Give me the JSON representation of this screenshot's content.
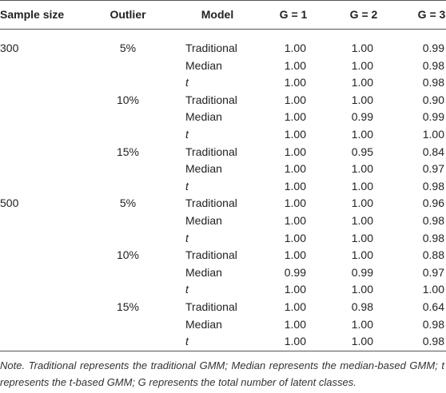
{
  "table": {
    "header": [
      "Sample size",
      "Outlier",
      "Model",
      "G = 1",
      "G = 2",
      "G = 3"
    ],
    "rows": [
      [
        "300",
        "5%",
        "Traditional",
        "1.00",
        "1.00",
        "0.99"
      ],
      [
        null,
        null,
        "Median",
        "1.00",
        "1.00",
        "0.98"
      ],
      [
        null,
        null,
        "t",
        "1.00",
        "1.00",
        "0.98"
      ],
      [
        null,
        "10%",
        "Traditional",
        "1.00",
        "1.00",
        "0.90"
      ],
      [
        null,
        null,
        "Median",
        "1.00",
        "0.99",
        "0.99"
      ],
      [
        null,
        null,
        "t",
        "1.00",
        "1.00",
        "1.00"
      ],
      [
        null,
        "15%",
        "Traditional",
        "1.00",
        "0.95",
        "0.84"
      ],
      [
        null,
        null,
        "Median",
        "1.00",
        "1.00",
        "0.97"
      ],
      [
        null,
        null,
        "t",
        "1.00",
        "1.00",
        "0.98"
      ],
      [
        "500",
        "5%",
        "Traditional",
        "1.00",
        "1.00",
        "0.96"
      ],
      [
        null,
        null,
        "Median",
        "1.00",
        "1.00",
        "0.98"
      ],
      [
        null,
        null,
        "t",
        "1.00",
        "1.00",
        "0.98"
      ],
      [
        null,
        "10%",
        "Traditional",
        "1.00",
        "1.00",
        "0.88"
      ],
      [
        null,
        null,
        "Median",
        "0.99",
        "0.99",
        "0.97"
      ],
      [
        null,
        null,
        "t",
        "1.00",
        "1.00",
        "1.00"
      ],
      [
        null,
        "15%",
        "Traditional",
        "1.00",
        "0.98",
        "0.64"
      ],
      [
        null,
        null,
        "Median",
        "1.00",
        "1.00",
        "0.98"
      ],
      [
        null,
        null,
        "t",
        "1.00",
        "1.00",
        "0.98"
      ]
    ]
  },
  "note": "Note. Traditional represents the traditional GMM; Median represents the median-based GMM; t represents the t-based GMM; G represents the total number of latent classes."
}
